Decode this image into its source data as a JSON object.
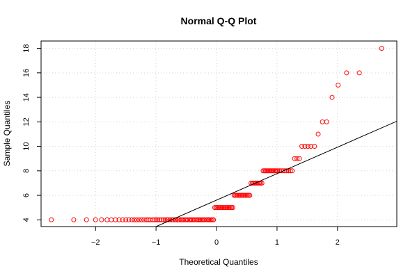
{
  "chart_data": {
    "type": "scatter",
    "title": "Normal Q-Q Plot",
    "xlabel": "Theoretical Quantiles",
    "ylabel": "Sample Quantiles",
    "xlim": [
      -2.9,
      2.98
    ],
    "ylim": [
      3.45,
      18.6
    ],
    "x_ticks": [
      -2,
      -1,
      0,
      1,
      2
    ],
    "y_ticks": [
      4,
      6,
      8,
      10,
      12,
      14,
      16,
      18
    ],
    "x_tick_labels": [
      "−2",
      "−1",
      "0",
      "1",
      "2"
    ],
    "y_tick_labels": [
      "4",
      "6",
      "8",
      "10",
      "12",
      "14",
      "16",
      "18"
    ],
    "grid": true,
    "colors": {
      "points": "#ff0000",
      "line": "#000000",
      "grid": "#d3d3d3"
    },
    "reference_line": {
      "x1": -1.0,
      "y1": 3.45,
      "x2": 2.98,
      "y2": 12.05
    },
    "series": [
      {
        "values_by_level": [
          {
            "y": 4,
            "x": [
              -2.73,
              -2.36,
              -2.15,
              -2.0,
              -1.9,
              -1.81,
              -1.74,
              -1.67,
              -1.61,
              -1.55,
              -1.5,
              -1.45,
              -1.4,
              -1.36,
              -1.32,
              -1.28,
              -1.24,
              -1.2,
              -1.16,
              -1.13,
              -1.1,
              -1.06,
              -1.03,
              -1.0,
              -0.97,
              -0.94,
              -0.91,
              -0.88,
              -0.85,
              -0.82,
              -0.8,
              -0.77,
              -0.74,
              -0.72,
              -0.69,
              -0.67,
              -0.64,
              -0.62,
              -0.59,
              -0.57,
              -0.55,
              -0.52,
              -0.5,
              -0.48,
              -0.45,
              -0.43,
              -0.41,
              -0.39,
              -0.37,
              -0.34,
              -0.32,
              -0.3,
              -0.28,
              -0.26,
              -0.24,
              -0.22,
              -0.2,
              -0.17,
              -0.15,
              -0.13,
              -0.11,
              -0.09,
              -0.07,
              -0.05
            ]
          },
          {
            "y": 5,
            "x": [
              -0.03,
              -0.01,
              0.01,
              0.03,
              0.05,
              0.07,
              0.09,
              0.11,
              0.13,
              0.15,
              0.17,
              0.19,
              0.21,
              0.23,
              0.25,
              0.27
            ]
          },
          {
            "y": 6,
            "x": [
              0.29,
              0.31,
              0.33,
              0.35,
              0.37,
              0.39,
              0.41,
              0.43,
              0.45,
              0.47,
              0.49,
              0.51,
              0.53,
              0.55
            ]
          },
          {
            "y": 7,
            "x": [
              0.57,
              0.59,
              0.61,
              0.63,
              0.65,
              0.67,
              0.69,
              0.71,
              0.73,
              0.75
            ]
          },
          {
            "y": 8,
            "x": [
              0.77,
              0.79,
              0.81,
              0.83,
              0.85,
              0.87,
              0.89,
              0.91,
              0.93,
              0.95,
              0.97,
              0.99,
              1.01,
              1.04,
              1.07,
              1.1,
              1.13,
              1.16,
              1.19,
              1.22,
              1.25
            ]
          },
          {
            "y": 9,
            "x": [
              1.29,
              1.33,
              1.37
            ]
          },
          {
            "y": 10,
            "x": [
              1.41,
              1.46,
              1.51,
              1.56,
              1.62
            ]
          },
          {
            "y": 11,
            "x": [
              1.68
            ]
          },
          {
            "y": 12,
            "x": [
              1.75,
              1.82
            ]
          },
          {
            "y": 14,
            "x": [
              1.91
            ]
          },
          {
            "y": 15,
            "x": [
              2.01
            ]
          },
          {
            "y": 16,
            "x": [
              2.15,
              2.36
            ]
          },
          {
            "y": 18,
            "x": [
              2.73
            ]
          }
        ]
      }
    ]
  }
}
